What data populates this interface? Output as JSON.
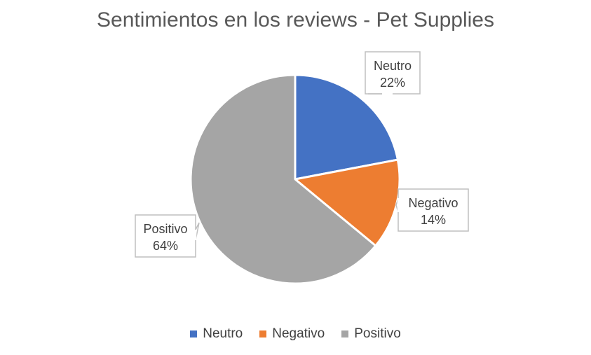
{
  "chart_data": {
    "type": "pie",
    "title": "Sentimientos en los reviews - Pet Supplies",
    "categories": [
      "Neutro",
      "Negativo",
      "Positivo"
    ],
    "values": [
      22,
      14,
      64
    ],
    "labels": [
      "Neutro\n22%",
      "Negativo\n14%",
      "Positivo\n64%"
    ],
    "colors": [
      "#4472C4",
      "#ED7D31",
      "#A5A5A5"
    ],
    "legend_position": "bottom"
  }
}
